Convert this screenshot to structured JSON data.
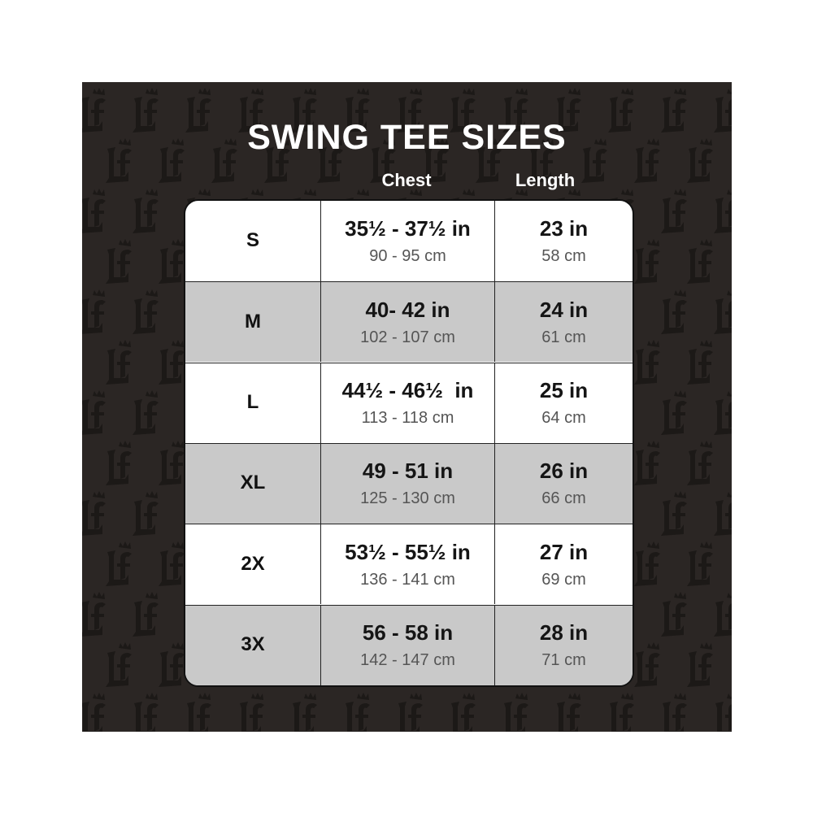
{
  "title": "SWING TEE SIZES",
  "headers": {
    "chest": "Chest",
    "length": "Length"
  },
  "colors": {
    "background": "#2b2624",
    "pattern": "#1c1917",
    "row_alt": "#c9c9c9",
    "row": "#ffffff"
  },
  "rows": [
    {
      "size": "S",
      "chest_in": "35½ - 37½ in",
      "chest_cm": "90 - 95 cm",
      "length_in": "23 in",
      "length_cm": "58 cm"
    },
    {
      "size": "M",
      "chest_in": "40- 42 in",
      "chest_cm": "102 - 107 cm",
      "length_in": "24 in",
      "length_cm": "61 cm"
    },
    {
      "size": "L",
      "chest_in": "44½ - 46½  in",
      "chest_cm": "113 - 118 cm",
      "length_in": "25 in",
      "length_cm": "64 cm"
    },
    {
      "size": "XL",
      "chest_in": "49 - 51 in",
      "chest_cm": "125 - 130 cm",
      "length_in": "26 in",
      "length_cm": "66 cm"
    },
    {
      "size": "2X",
      "chest_in": "53½ - 55½ in",
      "chest_cm": "136 - 141 cm",
      "length_in": "27 in",
      "length_cm": "69 cm"
    },
    {
      "size": "3X",
      "chest_in": "56 - 58 in",
      "chest_cm": "142 - 147 cm",
      "length_in": "28 in",
      "length_cm": "71 cm"
    }
  ]
}
